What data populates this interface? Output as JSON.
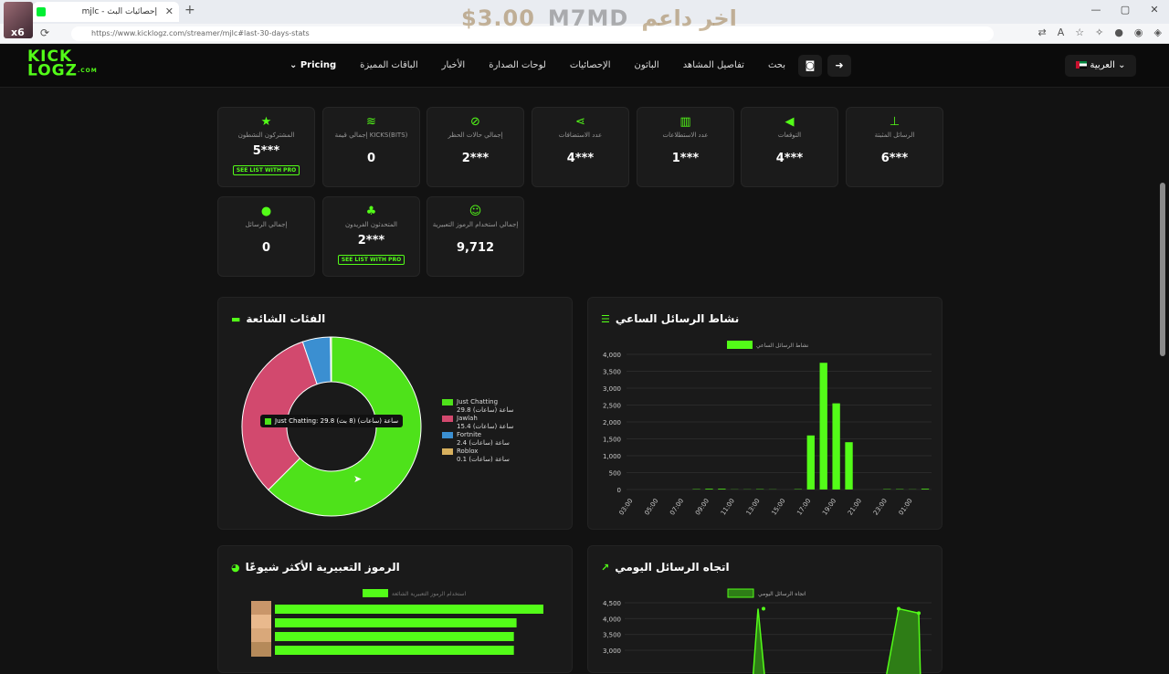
{
  "browser": {
    "tab_title": "إحصائيات البث - mjlc",
    "url": "https://www.kicklogz.com/streamer/mjlc#last-30-days-stats",
    "avatar_badge": "x6"
  },
  "banner": {
    "price": "$3.00",
    "sep": "M7MD",
    "text": "اخر داعم"
  },
  "header": {
    "logo_line1": "KICK",
    "logo_line2": "LOGZ",
    "logo_suffix": ".COM",
    "lang": "العربية",
    "menu": [
      "بحث",
      "تفاصيل المشاهد",
      "الباثون",
      "الإحصائيات",
      "لوحات الصدارة",
      "الأخبار",
      "الباقات المميزة",
      "Pricing"
    ]
  },
  "stats": [
    {
      "icon": "pin-icon",
      "label": "الرسائل المثبتة",
      "value": "6***"
    },
    {
      "icon": "megaphone-icon",
      "label": "التوقعات",
      "value": "4***"
    },
    {
      "icon": "poll-icon",
      "label": "عدد الاستطلاعات",
      "value": "1***"
    },
    {
      "icon": "share-icon",
      "label": "عدد الاستضافات",
      "value": "4***"
    },
    {
      "icon": "ban-icon",
      "label": "إجمالي حالات الحظر",
      "value": "2***"
    },
    {
      "icon": "coins-icon",
      "label": "إجمالي قيمة KICKS(BITS)",
      "value": "0"
    },
    {
      "icon": "star-icon",
      "label": "المشتركون النشطون",
      "value": "5***",
      "pro": "SEE LIST WITH PRO"
    },
    {
      "icon": "smile-icon",
      "label": "إجمالي استخدام الرموز التعبيرية",
      "value": "9,712"
    },
    {
      "icon": "users-icon",
      "label": "المتحدثون الفريدون",
      "value": "2***",
      "pro": "SEE LIST WITH PRO"
    },
    {
      "icon": "chat-icon",
      "label": "إجمالي الرسائل",
      "value": "0"
    }
  ],
  "categories_panel": {
    "title": "الفئات الشائعة",
    "tooltip": "Just Chatting: 29.8 ساعة (ساعات) (8 بث)"
  },
  "hourly_panel": {
    "title": "نشاط الرسائل الساعي"
  },
  "emotes_panel": {
    "title": "الرموز التعبيرية الأكثر شيوعًا",
    "legend": "استخدام الرموز التعبيرية الشائعة"
  },
  "daily_panel": {
    "title": "اتجاه الرسائل اليومي",
    "legend": "اتجاه الرسائل اليومي"
  },
  "chart_data": [
    {
      "type": "pie",
      "title": "الفئات الشائعة",
      "slices": [
        {
          "name": "Just Chatting",
          "value": 29.8,
          "sub": "29.8 ساعة (ساعات)",
          "color": "#4ee21a"
        },
        {
          "name": "Jawlah",
          "value": 15.4,
          "sub": "15.4 ساعة (ساعات)",
          "color": "#d2496e"
        },
        {
          "name": "Fortnite",
          "value": 2.4,
          "sub": "2.4 ساعة (ساعات)",
          "color": "#3b8fd1"
        },
        {
          "name": "Roblox",
          "value": 0.1,
          "sub": "0.1 ساعة (ساعات)",
          "color": "#d7b05e"
        }
      ]
    },
    {
      "type": "bar",
      "title": "نشاط الرسائل الساعي",
      "legend": "نشاط الرسائل الساعي",
      "color": "#53fc18",
      "ylim": [
        0,
        4000
      ],
      "yticks": [
        "0",
        "500",
        "1,000",
        "1,500",
        "2,000",
        "2,500",
        "3,000",
        "3,500",
        "4,000"
      ],
      "xticks": [
        "03:00",
        "05:00",
        "07:00",
        "09:00",
        "11:00",
        "13:00",
        "15:00",
        "17:00",
        "19:00",
        "21:00",
        "23:00",
        "01:00"
      ],
      "values": [
        0,
        0,
        0,
        0,
        0,
        10,
        20,
        20,
        5,
        5,
        10,
        5,
        0,
        10,
        1600,
        3750,
        2550,
        1400,
        0,
        0,
        10,
        10,
        5,
        20
      ]
    },
    {
      "type": "bar",
      "title": "الرموز التعبيرية الأكثر شيوعًا",
      "legend": "استخدام الرموز التعبيرية الشائعة",
      "values": [
        100,
        90,
        89,
        89
      ]
    },
    {
      "type": "line",
      "title": "اتجاه الرسائل اليومي",
      "legend": "اتجاه الرسائل اليومي",
      "yticks": [
        "3,000",
        "3,500",
        "4,000",
        "4,500"
      ],
      "ylim": [
        3000,
        4600
      ],
      "peaks": [
        4400,
        4400
      ]
    }
  ]
}
